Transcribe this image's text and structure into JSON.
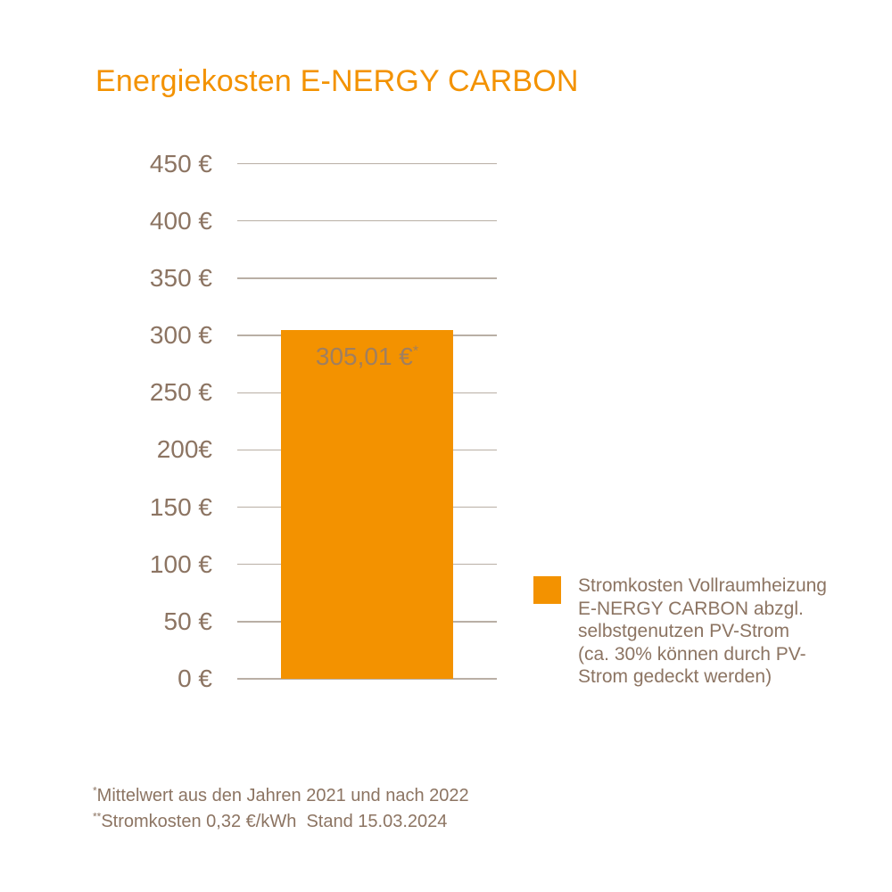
{
  "title": {
    "text": "Energiekosten E-NERGY CARBON"
  },
  "colors": {
    "accent_orange": "#F39200",
    "text_brown": "#8C7462",
    "bar_value_label": "#9F7F61",
    "gridline": "#b9afa5"
  },
  "chart_data": {
    "type": "bar",
    "title": "Energiekosten E-NERGY CARBON",
    "categories": [
      "Stromkosten Vollraumheizung E-NERGY CARBON abzgl. selbstgenutzen PV-Strom (ca. 30% können durch PV-Strom gedeckt werden)"
    ],
    "values": [
      305.01
    ],
    "bar_label": {
      "value_text": "305,01 €",
      "footnote_marker": "*"
    },
    "xlabel": "",
    "ylabel": "€",
    "ylim": [
      0,
      450
    ],
    "ytick_step": 50,
    "yticks": [
      {
        "value": 450,
        "label": "450 €"
      },
      {
        "value": 400,
        "label": "400 €"
      },
      {
        "value": 350,
        "label": "350 €"
      },
      {
        "value": 300,
        "label": "300 €"
      },
      {
        "value": 250,
        "label": "250 €"
      },
      {
        "value": 200,
        "label": "200€"
      },
      {
        "value": 150,
        "label": "150 €"
      },
      {
        "value": 100,
        "label": "100 €"
      },
      {
        "value": 50,
        "label": "50 €"
      },
      {
        "value": 0,
        "label": "0 €"
      }
    ],
    "grid": "horizontal",
    "legend_position": "right"
  },
  "legend": {
    "swatch_color": "#F39200",
    "lines": [
      "Stromkosten Vollraumheizung",
      "E-NERGY CARBON abzgl.",
      "selbstgenutzen PV-Strom",
      "(ca. 30% können durch PV-",
      "Strom gedeckt werden)"
    ]
  },
  "footnotes": [
    {
      "marker": "*",
      "text": "Mittelwert aus den Jahren 2021 und nach 2022"
    },
    {
      "marker": "**",
      "text": "Stromkosten 0,32 €/kWh  Stand 15.03.2024"
    }
  ]
}
